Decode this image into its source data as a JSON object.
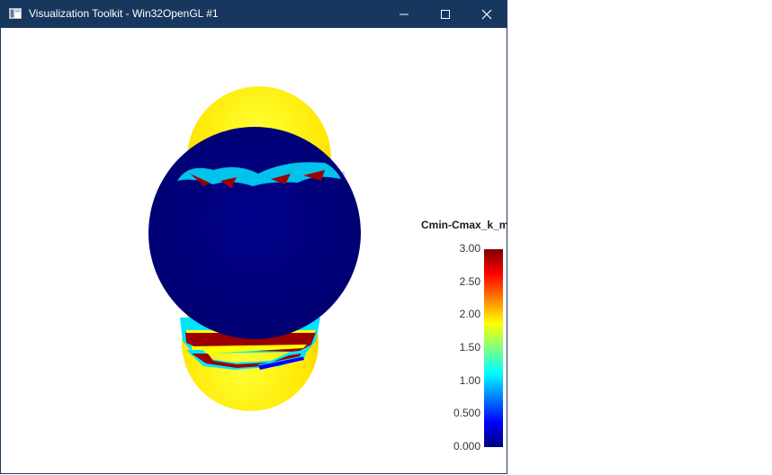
{
  "window": {
    "title": "Visualization Toolkit - Win32OpenGL #1",
    "titlebar_color": "#17375e"
  },
  "controls": {
    "minimize_icon": "minimize-icon",
    "maximize_icon": "maximize-icon",
    "close_icon": "close-icon"
  },
  "scalar_bar": {
    "title": "Cmin-Cmax_k_m",
    "ticks": [
      "3.00",
      "2.50",
      "2.00",
      "1.50",
      "1.00",
      "0.500",
      "0.000"
    ],
    "colormap": "jet"
  },
  "render": {
    "background": "#ffffff",
    "shape_colors": {
      "top_cap": "#ffee00",
      "middle_sphere": "#00007f",
      "bottom_cap": "#ffee00",
      "band_cyan": "#00e5ff",
      "band_red": "#9b0000"
    }
  }
}
